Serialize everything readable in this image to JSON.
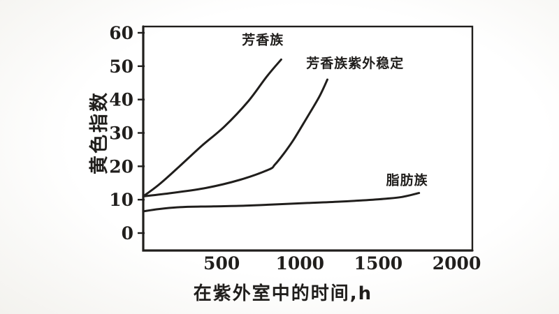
{
  "figure": {
    "background": "#fbfbf8",
    "ink_color": "#201e1c",
    "description": "scanned line chart, yellowing index vs UV exposure time"
  },
  "chart_data": {
    "type": "line",
    "title": "",
    "xlabel": "在紫外室中的时间,h",
    "ylabel": "黄色指数",
    "xlim": [
      0,
      2100
    ],
    "ylim": [
      0,
      60
    ],
    "xticks": [
      500,
      1000,
      1500,
      2000
    ],
    "yticks": [
      0,
      10,
      20,
      30,
      40,
      50,
      60
    ],
    "grid": false,
    "legend_position": "inline-labels",
    "series": [
      {
        "key": "aromatic",
        "name": "芳香族",
        "points": [
          [
            0,
            11
          ],
          [
            100,
            14.5
          ],
          [
            220,
            19.5
          ],
          [
            370,
            26
          ],
          [
            520,
            32
          ],
          [
            670,
            39.5
          ],
          [
            790,
            47
          ],
          [
            880,
            52
          ]
        ],
        "label_at": [
          630,
          56.5
        ]
      },
      {
        "key": "aromatic-uv-stabilized",
        "name": "芳香族紫外稳定",
        "points": [
          [
            0,
            11
          ],
          [
            180,
            12
          ],
          [
            400,
            13.5
          ],
          [
            620,
            16
          ],
          [
            800,
            19
          ],
          [
            840,
            20.5
          ],
          [
            900,
            24
          ],
          [
            960,
            28
          ],
          [
            1050,
            35
          ],
          [
            1125,
            41
          ],
          [
            1175,
            46
          ]
        ],
        "label_at": [
          1040,
          49.5
        ]
      },
      {
        "key": "aliphatic",
        "name": "脂肪族",
        "points": [
          [
            0,
            6.5
          ],
          [
            100,
            7.2
          ],
          [
            250,
            7.8
          ],
          [
            450,
            8
          ],
          [
            650,
            8.2
          ],
          [
            850,
            8.6
          ],
          [
            1050,
            9
          ],
          [
            1250,
            9.4
          ],
          [
            1400,
            9.8
          ],
          [
            1550,
            10.3
          ],
          [
            1650,
            10.8
          ],
          [
            1760,
            12
          ]
        ],
        "label_at": [
          1550,
          14.5
        ]
      }
    ]
  }
}
